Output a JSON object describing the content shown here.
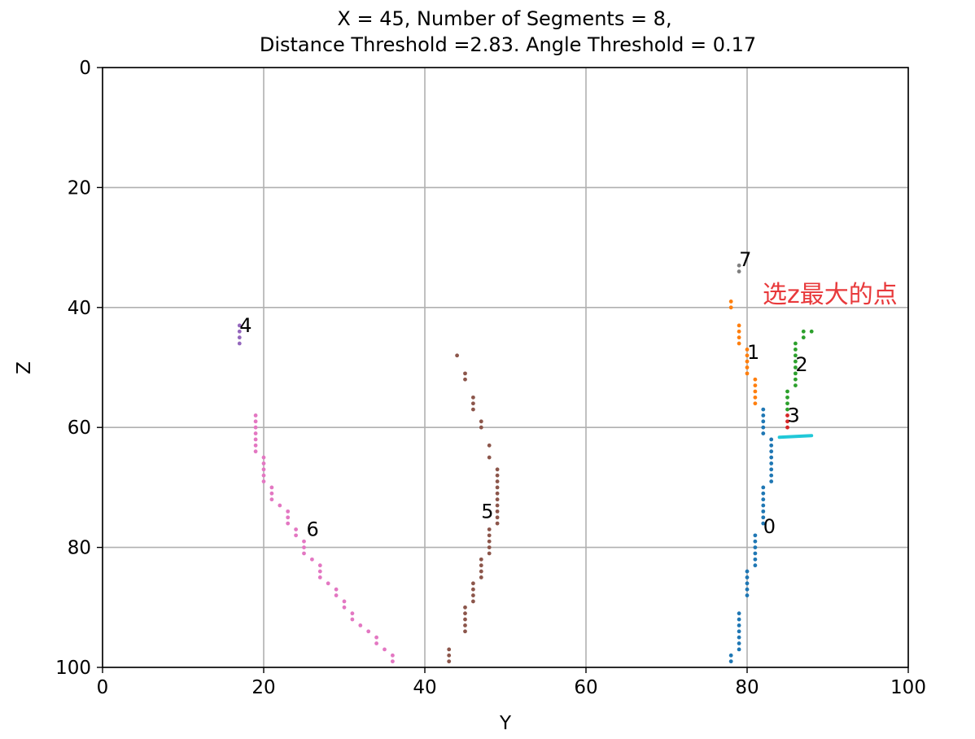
{
  "chart_data": {
    "type": "scatter",
    "title": "X = 45, Number of Segments = 8,",
    "subtitle": "Distance Threshold =2.83. Angle Threshold = 0.17",
    "xlabel": "Y",
    "ylabel": "Z",
    "xlim": [
      0,
      100
    ],
    "ylim": [
      0,
      100
    ],
    "y_inverted": true,
    "grid": true,
    "x_ticks": [
      "0",
      "20",
      "40",
      "60",
      "80",
      "100"
    ],
    "y_ticks": [
      "0",
      "20",
      "40",
      "60",
      "80",
      "100"
    ],
    "series": [
      {
        "label": "0",
        "color": "#1f77b4",
        "label_at": [
          82,
          76.5
        ],
        "points": [
          [
            82,
            57
          ],
          [
            82,
            58
          ],
          [
            82,
            59
          ],
          [
            82,
            60
          ],
          [
            82,
            61
          ],
          [
            83,
            62
          ],
          [
            83,
            63
          ],
          [
            83,
            64
          ],
          [
            83,
            65
          ],
          [
            83,
            66
          ],
          [
            83,
            67
          ],
          [
            83,
            68
          ],
          [
            83,
            69
          ],
          [
            82,
            70
          ],
          [
            82,
            71
          ],
          [
            82,
            72
          ],
          [
            82,
            73
          ],
          [
            82,
            74
          ],
          [
            82,
            75
          ],
          [
            82,
            76
          ],
          [
            81,
            78
          ],
          [
            81,
            79
          ],
          [
            81,
            80
          ],
          [
            81,
            81
          ],
          [
            81,
            82
          ],
          [
            81,
            83
          ],
          [
            80,
            84
          ],
          [
            80,
            85
          ],
          [
            80,
            86
          ],
          [
            80,
            87
          ],
          [
            80,
            88
          ],
          [
            79,
            91
          ],
          [
            79,
            92
          ],
          [
            79,
            93
          ],
          [
            79,
            94
          ],
          [
            79,
            95
          ],
          [
            79,
            96
          ],
          [
            79,
            97
          ],
          [
            78,
            98
          ],
          [
            78,
            99
          ]
        ]
      },
      {
        "label": "1",
        "color": "#ff7f0e",
        "label_at": [
          80,
          47.5
        ],
        "points": [
          [
            78,
            39
          ],
          [
            78,
            40
          ],
          [
            79,
            43
          ],
          [
            79,
            44
          ],
          [
            79,
            45
          ],
          [
            79,
            46
          ],
          [
            80,
            47
          ],
          [
            80,
            48
          ],
          [
            80,
            49
          ],
          [
            80,
            50
          ],
          [
            80,
            51
          ],
          [
            81,
            52
          ],
          [
            81,
            53
          ],
          [
            81,
            54
          ],
          [
            81,
            55
          ],
          [
            81,
            56
          ]
        ]
      },
      {
        "label": "2",
        "color": "#2ca02c",
        "label_at": [
          86,
          49.5
        ],
        "points": [
          [
            88,
            44
          ],
          [
            87,
            44
          ],
          [
            87,
            45
          ],
          [
            86,
            46
          ],
          [
            86,
            47
          ],
          [
            86,
            48
          ],
          [
            86,
            49
          ],
          [
            86,
            50
          ],
          [
            86,
            51
          ],
          [
            86,
            52
          ],
          [
            86,
            53
          ],
          [
            85,
            54
          ],
          [
            85,
            55
          ],
          [
            85,
            56
          ],
          [
            85,
            57
          ]
        ]
      },
      {
        "label": "3",
        "color": "#d62728",
        "label_at": [
          85,
          58
        ],
        "points": [
          [
            85,
            58
          ],
          [
            85,
            59
          ],
          [
            85,
            60
          ]
        ]
      },
      {
        "label": "4",
        "color": "#9467bd",
        "label_at": [
          17,
          43
        ],
        "points": [
          [
            17,
            43
          ],
          [
            17,
            44
          ],
          [
            17,
            45
          ],
          [
            17,
            46
          ]
        ]
      },
      {
        "label": "5",
        "color": "#8c564b",
        "label_at": [
          47,
          74
        ],
        "points": [
          [
            44,
            48
          ],
          [
            45,
            51
          ],
          [
            45,
            52
          ],
          [
            46,
            55
          ],
          [
            46,
            56
          ],
          [
            46,
            57
          ],
          [
            47,
            59
          ],
          [
            47,
            60
          ],
          [
            48,
            63
          ],
          [
            48,
            65
          ],
          [
            49,
            67
          ],
          [
            49,
            68
          ],
          [
            49,
            69
          ],
          [
            49,
            70
          ],
          [
            49,
            71
          ],
          [
            49,
            72
          ],
          [
            49,
            73
          ],
          [
            49,
            74
          ],
          [
            49,
            75
          ],
          [
            49,
            76
          ],
          [
            48,
            77
          ],
          [
            48,
            78
          ],
          [
            48,
            79
          ],
          [
            48,
            80
          ],
          [
            48,
            81
          ],
          [
            47,
            82
          ],
          [
            47,
            83
          ],
          [
            47,
            84
          ],
          [
            47,
            85
          ],
          [
            46,
            86
          ],
          [
            46,
            87
          ],
          [
            46,
            88
          ],
          [
            46,
            89
          ],
          [
            45,
            90
          ],
          [
            45,
            91
          ],
          [
            45,
            92
          ],
          [
            45,
            93
          ],
          [
            45,
            94
          ],
          [
            43,
            97
          ],
          [
            43,
            98
          ],
          [
            43,
            99
          ]
        ]
      },
      {
        "label": "6",
        "color": "#e377c2",
        "label_at": [
          25.3,
          77
        ],
        "points": [
          [
            19,
            58
          ],
          [
            19,
            59
          ],
          [
            19,
            60
          ],
          [
            19,
            61
          ],
          [
            19,
            62
          ],
          [
            19,
            63
          ],
          [
            19,
            64
          ],
          [
            20,
            65
          ],
          [
            20,
            66
          ],
          [
            20,
            67
          ],
          [
            20,
            68
          ],
          [
            20,
            69
          ],
          [
            21,
            70
          ],
          [
            21,
            71
          ],
          [
            21,
            72
          ],
          [
            22,
            73
          ],
          [
            23,
            74
          ],
          [
            23,
            75
          ],
          [
            23,
            76
          ],
          [
            24,
            77
          ],
          [
            24,
            78
          ],
          [
            25,
            79
          ],
          [
            25,
            80
          ],
          [
            25,
            81
          ],
          [
            26,
            82
          ],
          [
            27,
            83
          ],
          [
            27,
            84
          ],
          [
            27,
            85
          ],
          [
            28,
            86
          ],
          [
            29,
            87
          ],
          [
            29,
            88
          ],
          [
            30,
            89
          ],
          [
            30,
            90
          ],
          [
            31,
            91
          ],
          [
            31,
            92
          ],
          [
            32,
            93
          ],
          [
            33,
            94
          ],
          [
            34,
            95
          ],
          [
            34,
            96
          ],
          [
            35,
            97
          ],
          [
            36,
            98
          ],
          [
            36,
            99
          ]
        ]
      },
      {
        "label": "7",
        "color": "#7f7f7f",
        "label_at": [
          79,
          32
        ],
        "points": [
          [
            79,
            33
          ],
          [
            79,
            34
          ]
        ]
      }
    ],
    "annotation": {
      "text": "选z最大的点",
      "color": "#e8393b",
      "highlight_color": "#21c8d8",
      "highlight_y_from": 84,
      "highlight_y_to": 88,
      "highlight_z": 61.5
    }
  }
}
